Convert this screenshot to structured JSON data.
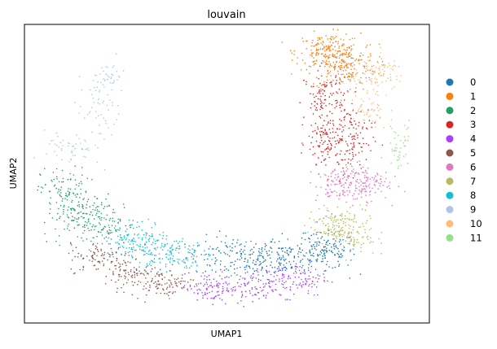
{
  "chart_data": {
    "type": "scatter",
    "title": "louvain",
    "xlabel": "UMAP1",
    "ylabel": "UMAP2",
    "xlim": [
      0,
      100
    ],
    "ylim": [
      0,
      100
    ],
    "grid": false,
    "ticks": false,
    "legend_position": "right",
    "series": [
      {
        "name": "0",
        "color": "#1f77b4",
        "count": 420,
        "clusters": [
          [
            52,
            22,
            6,
            3.5
          ],
          [
            64,
            22,
            6,
            3.5
          ],
          [
            74,
            24,
            4,
            3
          ]
        ]
      },
      {
        "name": "1",
        "color": "#ff7f0e",
        "count": 360,
        "clusters": [
          [
            75,
            91,
            4,
            3
          ],
          [
            79,
            86,
            4,
            4
          ]
        ]
      },
      {
        "name": "2",
        "color": "#279e68",
        "count": 300,
        "clusters": [
          [
            10,
            44,
            3,
            4
          ],
          [
            14,
            35,
            4,
            4
          ],
          [
            20,
            33,
            4,
            4
          ]
        ]
      },
      {
        "name": "3",
        "color": "#d62728",
        "count": 340,
        "clusters": [
          [
            74,
            75,
            2.5,
            5
          ],
          [
            75,
            60,
            2.5,
            5
          ],
          [
            81,
            62,
            2.5,
            6
          ]
        ]
      },
      {
        "name": "4",
        "color": "#aa40fc",
        "count": 300,
        "clusters": [
          [
            46,
            12,
            4,
            2.5
          ],
          [
            57,
            12,
            5,
            3
          ],
          [
            67,
            15,
            4,
            3
          ]
        ]
      },
      {
        "name": "5",
        "color": "#8c564b",
        "count": 260,
        "clusters": [
          [
            19,
            22,
            4,
            2.5
          ],
          [
            27,
            17,
            4,
            2.5
          ],
          [
            34,
            13,
            4,
            2
          ]
        ]
      },
      {
        "name": "6",
        "color": "#e377c2",
        "count": 220,
        "clusters": [
          [
            78,
            46,
            3,
            3
          ],
          [
            84,
            47,
            3,
            3
          ]
        ]
      },
      {
        "name": "7",
        "color": "#b5bd61",
        "count": 200,
        "clusters": [
          [
            76,
            33,
            3,
            3
          ],
          [
            81,
            30,
            3,
            4
          ]
        ]
      },
      {
        "name": "8",
        "color": "#17becf",
        "count": 260,
        "clusters": [
          [
            28,
            28,
            4,
            3
          ],
          [
            36,
            23,
            4,
            3
          ]
        ]
      },
      {
        "name": "9",
        "color": "#aec7e8",
        "count": 140,
        "clusters": [
          [
            18,
            70,
            3,
            6
          ],
          [
            11,
            58,
            3,
            3
          ],
          [
            21,
            82,
            2,
            3
          ]
        ]
      },
      {
        "name": "10",
        "color": "#ffbb78",
        "count": 130,
        "clusters": [
          [
            86,
            80,
            3,
            3
          ],
          [
            89,
            84,
            2.5,
            2.5
          ],
          [
            85,
            70,
            2.5,
            3
          ]
        ]
      },
      {
        "name": "11",
        "color": "#98df8a",
        "count": 45,
        "clusters": [
          [
            93,
            62,
            1.5,
            3
          ],
          [
            92,
            56,
            1.5,
            2
          ]
        ]
      }
    ]
  }
}
